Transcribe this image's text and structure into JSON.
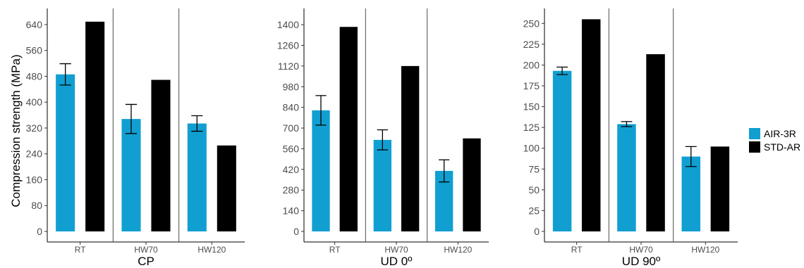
{
  "chart_data": {
    "type": "bar",
    "ylabel": "Compression strength (MPa)",
    "categories": [
      "RT",
      "HW70",
      "HW120"
    ],
    "legend": {
      "placement": "right",
      "entries": [
        {
          "name": "AIR-3R",
          "color": "#119fd1"
        },
        {
          "name": "STD-AR",
          "color": "#000000"
        }
      ]
    },
    "grid": false,
    "panels": [
      {
        "title": "CP",
        "ylim": [
          0,
          690
        ],
        "yticks": [
          0,
          80,
          160,
          240,
          320,
          400,
          480,
          560,
          640
        ],
        "series": [
          {
            "name": "AIR-3R",
            "values": [
              486,
              348,
              334
            ],
            "error": [
              33,
              45,
              24
            ]
          },
          {
            "name": "STD-AR",
            "values": [
              649,
              469,
              266
            ]
          }
        ]
      },
      {
        "title": "UD 0º",
        "ylim": [
          0,
          1510
        ],
        "yticks": [
          0,
          140,
          280,
          420,
          560,
          700,
          840,
          980,
          1120,
          1260,
          1400
        ],
        "series": [
          {
            "name": "AIR-3R",
            "values": [
              820,
              620,
              410
            ],
            "error": [
              100,
              68,
              75
            ]
          },
          {
            "name": "STD-AR",
            "values": [
              1385,
              1120,
              630
            ]
          }
        ]
      },
      {
        "title": "UD 90º",
        "ylim": [
          0,
          268
        ],
        "yticks": [
          0,
          25,
          50,
          75,
          100,
          125,
          150,
          175,
          200,
          225,
          250
        ],
        "series": [
          {
            "name": "AIR-3R",
            "values": [
              193,
              129,
              90
            ],
            "error": [
              4.5,
              3,
              12
            ]
          },
          {
            "name": "STD-AR",
            "values": [
              255,
              213,
              102
            ]
          }
        ]
      }
    ]
  }
}
